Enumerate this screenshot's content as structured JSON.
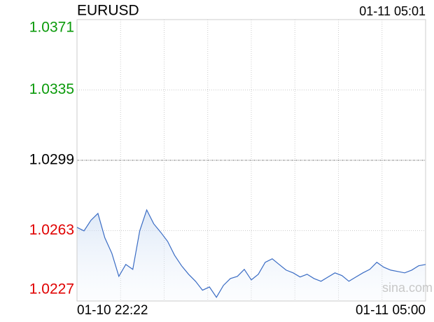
{
  "chart_data": {
    "type": "line",
    "title": "EURUSD",
    "timestamp": "01-11 05:01",
    "categories": [
      "01-10 22:22",
      null,
      null,
      null,
      null,
      null,
      null,
      null,
      null,
      null,
      null,
      null,
      null,
      null,
      null,
      null,
      null,
      null,
      null,
      null,
      null,
      null,
      null,
      null,
      null,
      null,
      null,
      null,
      null,
      null,
      null,
      null,
      null,
      null,
      null,
      null,
      null,
      null,
      null,
      null,
      null,
      null,
      null,
      null,
      null,
      null,
      null,
      null,
      null,
      null,
      "01-11 05:00"
    ],
    "values": [
      1.02647,
      1.02629,
      1.02683,
      1.02718,
      1.02593,
      1.02514,
      1.02396,
      1.02457,
      1.02432,
      1.02629,
      1.02736,
      1.02665,
      1.02622,
      1.02575,
      1.02504,
      1.0245,
      1.02407,
      1.02371,
      1.02325,
      1.02342,
      1.02289,
      1.0235,
      1.02385,
      1.02396,
      1.02432,
      1.02378,
      1.02407,
      1.02468,
      1.02486,
      1.02457,
      1.02428,
      1.02414,
      1.02393,
      1.02407,
      1.02385,
      1.02371,
      1.02393,
      1.02414,
      1.024,
      1.02371,
      1.02393,
      1.02414,
      1.02432,
      1.02468,
      1.02443,
      1.02428,
      1.02421,
      1.02414,
      1.02428,
      1.0245,
      1.02457
    ],
    "color": "#3a6cc4",
    "ylim": [
      1.0227,
      1.0371
    ],
    "yticks": [
      1.0227,
      1.0263,
      1.0299,
      1.0335,
      1.0371
    ],
    "ytick_colors": [
      "#e00000",
      "#e00000",
      "#000000",
      "#0a9a0a",
      "#0a9a0a"
    ],
    "grid": true,
    "watermark": "sina.com"
  }
}
